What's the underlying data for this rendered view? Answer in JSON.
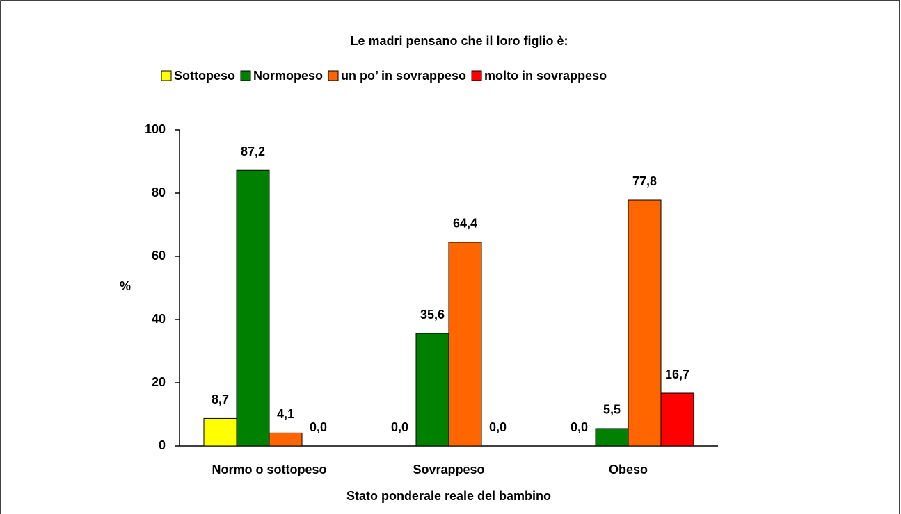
{
  "chart_data": {
    "type": "bar",
    "title": "Le madri pensano che il loro figlio è:",
    "categories": [
      "Normo o sottopeso",
      "Sovrappeso",
      "Obeso"
    ],
    "series": [
      {
        "name": "Sottopeso",
        "color": "#ffff00",
        "values": [
          8.7,
          0,
          0
        ],
        "value_labels": [
          "8,7",
          "0,0",
          "0,0"
        ]
      },
      {
        "name": "Normopeso",
        "color": "#008000",
        "values": [
          87.2,
          35.6,
          5.5
        ],
        "value_labels": [
          "87,2",
          "35,6",
          "5,5"
        ]
      },
      {
        "name": "un po’ in sovrappeso",
        "color": "#ff6600",
        "values": [
          4.1,
          64.4,
          77.8
        ],
        "value_labels": [
          "4,1",
          "64,4",
          "77,8"
        ]
      },
      {
        "name": "molto in sovrappeso",
        "color": "#ff0000",
        "values": [
          0,
          0,
          16.7
        ],
        "value_labels": [
          "0,0",
          "0,0",
          "16,7"
        ]
      }
    ],
    "ylabel": "%",
    "xlabel": "Stato ponderale reale del bambino",
    "ylim": [
      0,
      100
    ],
    "yticks": [
      0,
      20,
      40,
      60,
      80,
      100
    ],
    "legend": "top",
    "grid": false
  }
}
